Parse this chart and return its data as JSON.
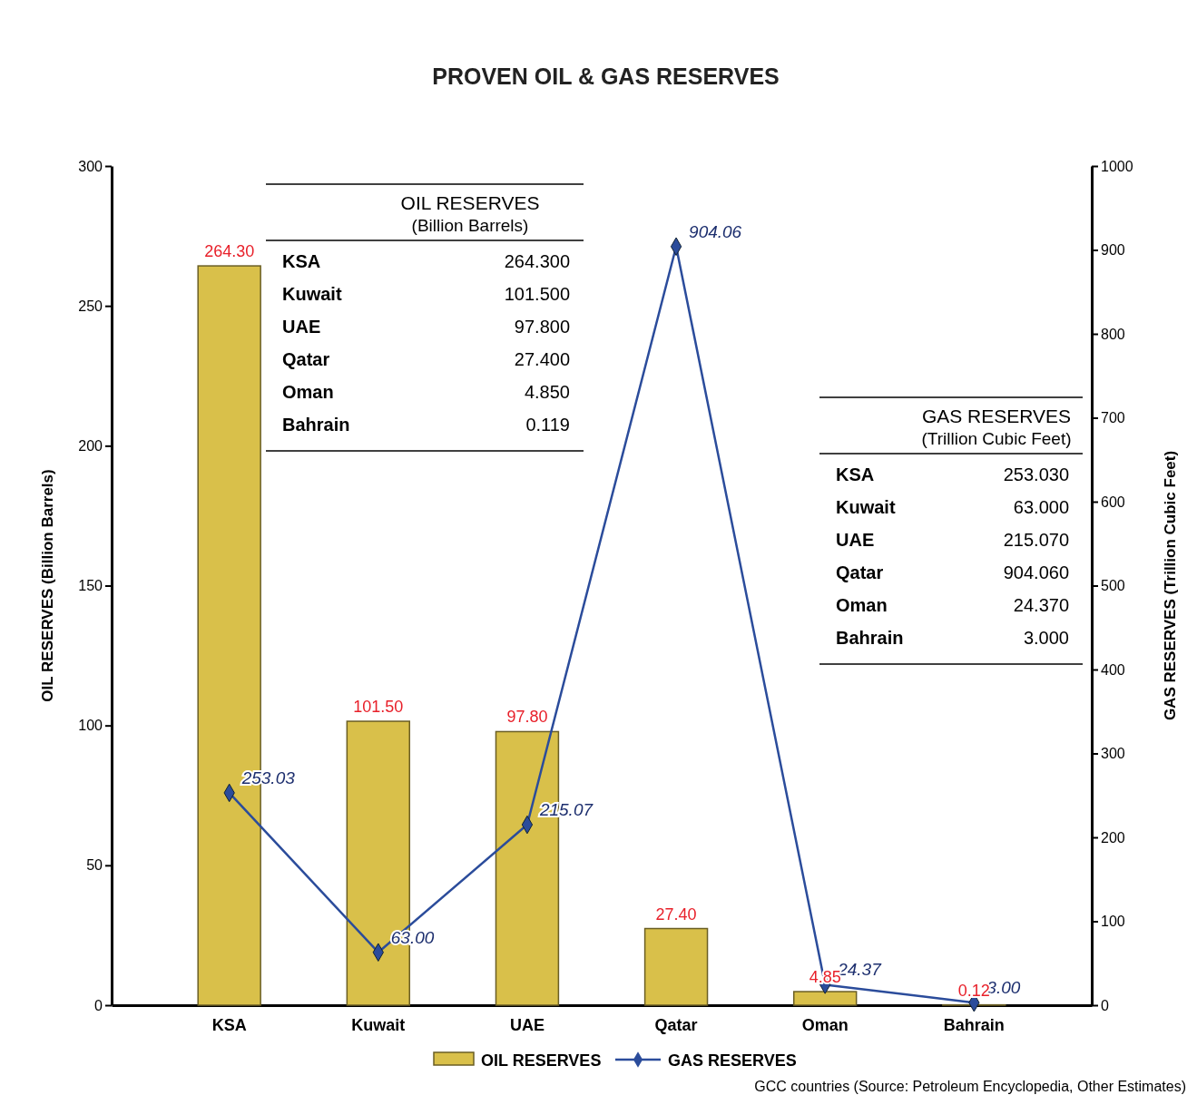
{
  "chart_data": {
    "type": "bar",
    "title": "PROVEN OIL & GAS RESERVES",
    "ylabel": "OIL RESERVES (Billion Barrels)",
    "y2label": "GAS RESERVES (Trillion Cubic Feet)",
    "categories": [
      "KSA",
      "Kuwait",
      "UAE",
      "Qatar",
      "Oman",
      "Bahrain"
    ],
    "series": [
      {
        "name": "OIL RESERVES",
        "color": "#d9c04a",
        "values": [
          264.3,
          101.5,
          97.8,
          27.4,
          4.85,
          0.12
        ],
        "value_labels": [
          "264.30",
          "101.50",
          "97.80",
          "27.40",
          "4.85",
          "0.12"
        ]
      },
      {
        "name": "GAS RESERVES",
        "type": "line",
        "axis": "y2",
        "color": "#2b4c9b",
        "marker": "diamond",
        "values": [
          253.03,
          63.0,
          215.07,
          904.06,
          24.37,
          3.0
        ],
        "value_labels": [
          "253.03",
          "63.00",
          "215.07",
          "904.06",
          "24.37",
          "3.00"
        ]
      }
    ],
    "ylim": [
      0,
      300
    ],
    "yticks": [
      0,
      50,
      100,
      150,
      200,
      250,
      300
    ],
    "y2lim": [
      0,
      1000
    ],
    "y2ticks": [
      0,
      100,
      200,
      300,
      400,
      500,
      600,
      700,
      800,
      900,
      1000
    ],
    "grid": false,
    "legend": "bottom",
    "annotations": [
      "OIL RESERVES\n(Billion Barrels)",
      "KSA\t264.300",
      "Kuwait\t101.500",
      "UAE\t97.800",
      "Qatar\t27.400",
      "Oman\t4.850",
      "Bahrain\t0.119",
      "GAS RESERVES\n(Trillion Cubic Feet)",
      "KSA\t253.030",
      "Kuwait\t63.000",
      "UAE\t215.070",
      "Qatar\t904.060",
      "Oman\t24.370",
      "Bahrain\t3.000",
      "GCC countries (Source: Petroleum Encyclopedia, Other Estimates)"
    ]
  }
}
